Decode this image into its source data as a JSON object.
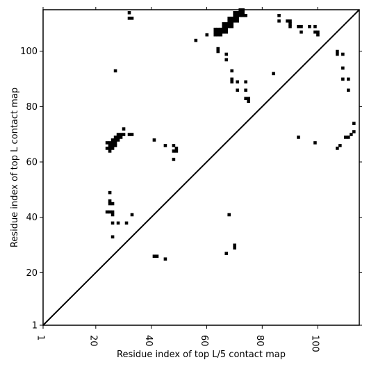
{
  "chart_data": {
    "type": "scatter",
    "title": "",
    "xlabel": "Residue index of top L/5 contact map",
    "ylabel": "Residue index of top L contact map",
    "xlim": [
      1,
      115
    ],
    "ylim": [
      1,
      115
    ],
    "xticks": [
      1,
      20,
      40,
      60,
      80,
      100
    ],
    "yticks": [
      1,
      20,
      40,
      60,
      80,
      100
    ],
    "grid": false,
    "legend": "none",
    "colors": {
      "marker": "#000000",
      "diagonal": "#000000",
      "frame": "#000000"
    },
    "diagonal": [
      [
        1,
        1
      ],
      [
        115,
        115
      ]
    ],
    "series": [
      {
        "name": "",
        "points": [
          [
            32,
            114
          ],
          [
            32,
            112
          ],
          [
            33,
            112
          ],
          [
            56,
            104
          ],
          [
            60,
            106
          ],
          [
            63,
            106
          ],
          [
            63,
            107
          ],
          [
            63,
            108
          ],
          [
            64,
            106
          ],
          [
            64,
            107
          ],
          [
            64,
            108
          ],
          [
            65,
            106
          ],
          [
            65,
            107
          ],
          [
            65,
            108
          ],
          [
            66,
            107
          ],
          [
            66,
            108
          ],
          [
            66,
            109
          ],
          [
            66,
            110
          ],
          [
            67,
            107
          ],
          [
            67,
            108
          ],
          [
            67,
            109
          ],
          [
            67,
            110
          ],
          [
            68,
            109
          ],
          [
            68,
            110
          ],
          [
            68,
            111
          ],
          [
            68,
            112
          ],
          [
            69,
            109
          ],
          [
            69,
            110
          ],
          [
            69,
            111
          ],
          [
            69,
            112
          ],
          [
            70,
            111
          ],
          [
            70,
            112
          ],
          [
            70,
            113
          ],
          [
            70,
            114
          ],
          [
            71,
            111
          ],
          [
            71,
            112
          ],
          [
            71,
            113
          ],
          [
            71,
            114
          ],
          [
            72,
            113
          ],
          [
            72,
            114
          ],
          [
            72,
            115
          ],
          [
            73,
            113
          ],
          [
            73,
            114
          ],
          [
            73,
            115
          ],
          [
            74,
            113
          ],
          [
            64,
            100
          ],
          [
            64,
            101
          ],
          [
            67,
            97
          ],
          [
            67,
            99
          ],
          [
            69,
            93
          ],
          [
            69,
            89
          ],
          [
            69,
            90
          ],
          [
            71,
            89
          ],
          [
            71,
            86
          ],
          [
            74,
            89
          ],
          [
            74,
            86
          ],
          [
            74,
            83
          ],
          [
            75,
            83
          ],
          [
            75,
            82
          ],
          [
            84,
            92
          ],
          [
            86,
            113
          ],
          [
            86,
            111
          ],
          [
            89,
            111
          ],
          [
            90,
            111
          ],
          [
            90,
            110
          ],
          [
            90,
            109
          ],
          [
            93,
            109
          ],
          [
            94,
            109
          ],
          [
            94,
            107
          ],
          [
            97,
            109
          ],
          [
            99,
            109
          ],
          [
            99,
            107
          ],
          [
            100,
            107
          ],
          [
            100,
            106
          ],
          [
            107,
            100
          ],
          [
            107,
            99
          ],
          [
            109,
            99
          ],
          [
            109,
            94
          ],
          [
            109,
            90
          ],
          [
            111,
            90
          ],
          [
            111,
            86
          ],
          [
            27,
            93
          ],
          [
            24,
            67
          ],
          [
            24,
            65
          ],
          [
            25,
            67
          ],
          [
            25,
            66
          ],
          [
            25,
            65
          ],
          [
            25,
            64
          ],
          [
            26,
            68
          ],
          [
            26,
            67
          ],
          [
            26,
            66
          ],
          [
            26,
            65
          ],
          [
            27,
            69
          ],
          [
            27,
            68
          ],
          [
            27,
            67
          ],
          [
            27,
            66
          ],
          [
            28,
            70
          ],
          [
            28,
            69
          ],
          [
            28,
            68
          ],
          [
            29,
            70
          ],
          [
            29,
            69
          ],
          [
            30,
            72
          ],
          [
            30,
            70
          ],
          [
            32,
            70
          ],
          [
            33,
            70
          ],
          [
            41,
            68
          ],
          [
            45,
            66
          ],
          [
            48,
            66
          ],
          [
            48,
            64
          ],
          [
            48,
            61
          ],
          [
            49,
            65
          ],
          [
            49,
            64
          ],
          [
            93,
            69
          ],
          [
            99,
            67
          ],
          [
            107,
            65
          ],
          [
            108,
            66
          ],
          [
            110,
            69
          ],
          [
            111,
            69
          ],
          [
            112,
            70
          ],
          [
            113,
            71
          ],
          [
            113,
            74
          ],
          [
            25,
            49
          ],
          [
            25,
            46
          ],
          [
            25,
            45
          ],
          [
            26,
            45
          ],
          [
            24,
            42
          ],
          [
            25,
            42
          ],
          [
            26,
            42
          ],
          [
            26,
            41
          ],
          [
            26,
            38
          ],
          [
            28,
            38
          ],
          [
            31,
            38
          ],
          [
            33,
            41
          ],
          [
            26,
            33
          ],
          [
            68,
            41
          ],
          [
            67,
            27
          ],
          [
            70,
            30
          ],
          [
            70,
            29
          ],
          [
            41,
            26
          ],
          [
            42,
            26
          ],
          [
            45,
            25
          ]
        ]
      }
    ]
  }
}
